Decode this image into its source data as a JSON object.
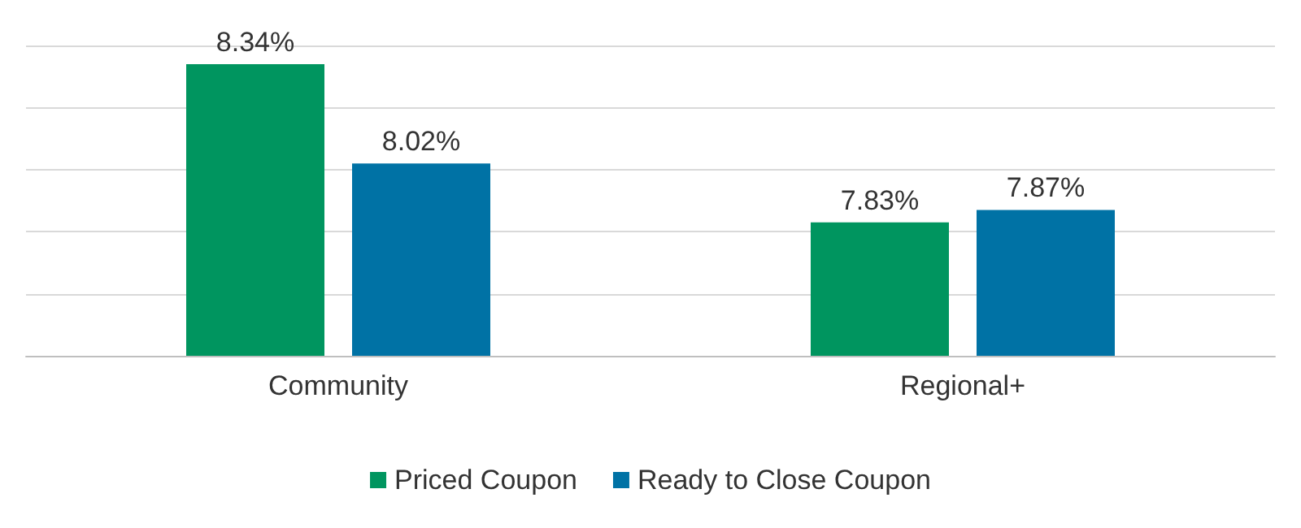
{
  "chart_data": {
    "type": "bar",
    "categories": [
      "Community",
      "Regional+"
    ],
    "series": [
      {
        "name": "Priced Coupon",
        "color": "#00955f",
        "values": [
          8.34,
          7.83
        ],
        "value_labels": [
          "8.34%",
          "7.83%"
        ]
      },
      {
        "name": "Ready to Close Coupon",
        "color": "#0072a5",
        "values": [
          8.02,
          7.87
        ],
        "value_labels": [
          "8.02%",
          "7.87%"
        ]
      }
    ],
    "ylim": [
      7.4,
      8.4
    ],
    "yticks": [
      {
        "value": 7.4,
        "label": null
      },
      {
        "value": 7.6,
        "label": null
      },
      {
        "value": 7.8,
        "label": null
      },
      {
        "value": 8.0,
        "label": null
      },
      {
        "value": 8.2,
        "label": null
      },
      {
        "value": 8.4,
        "label": null
      }
    ],
    "tick_labels": "x",
    "grid": "y",
    "legend": "bottom"
  }
}
